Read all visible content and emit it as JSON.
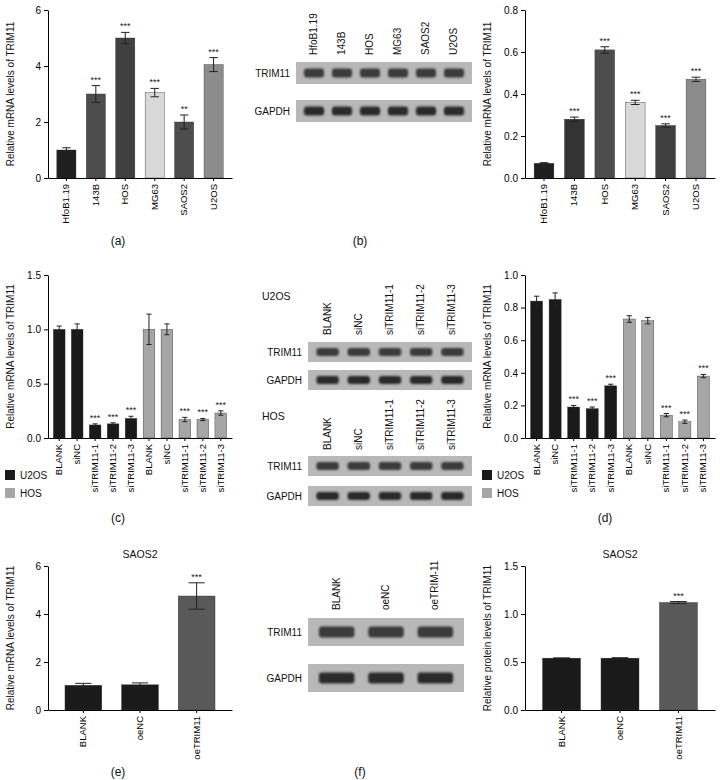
{
  "panels": [
    "(a)",
    "(b)",
    "(c)",
    "(d)",
    "(e)",
    "(f)"
  ],
  "chart_data": [
    {
      "type": "bar",
      "y_label": "Relative mRNA levels of TRIM11",
      "categories": [
        "HfoB1.19",
        "143B",
        "HOS",
        "MG63",
        "SAOS2",
        "U2OS"
      ],
      "values": [
        1.0,
        3.0,
        5.0,
        3.05,
        2.0,
        4.05
      ],
      "errors": [
        0.08,
        0.3,
        0.2,
        0.15,
        0.25,
        0.25
      ],
      "annotations": [
        null,
        "***",
        "***",
        "***",
        "**",
        "***"
      ],
      "colors": [
        "#1f1f1f",
        "#4d4d4d",
        "#404040",
        "#d9d9d9",
        "#4d4d4d",
        "#8c8c8c"
      ],
      "ylim": [
        0,
        6
      ],
      "yticks": [
        0,
        2,
        4,
        6
      ]
    },
    {
      "type": "bar",
      "y_label": "Relative mRNA levels of TRIM11",
      "categories": [
        "HfoB1.19",
        "143B",
        "HOS",
        "MG63",
        "SAOS2",
        "U2OS"
      ],
      "values": [
        0.07,
        0.28,
        0.61,
        0.36,
        0.25,
        0.47
      ],
      "errors": [
        0.003,
        0.01,
        0.015,
        0.01,
        0.008,
        0.01
      ],
      "annotations": [
        null,
        "***",
        "***",
        "***",
        "***",
        "***"
      ],
      "colors": [
        "#1f1f1f",
        "#333333",
        "#4d4d4d",
        "#d9d9d9",
        "#404040",
        "#8c8c8c"
      ],
      "ylim": [
        0,
        0.8
      ],
      "yticks": [
        {
          "value": 0,
          "label": "0.0"
        },
        0.2,
        0.4,
        0.6,
        0.8
      ]
    },
    {
      "type": "bar",
      "y_label": "Relative mRNA levels of TRIM11",
      "categories": [
        "BLANK",
        "siNC",
        "siTRIM11-1",
        "siTRIM11-2",
        "siTRIM11-3"
      ],
      "series": [
        {
          "name": "U2OS",
          "color": "#1a1a1a",
          "values": [
            1.0,
            1.0,
            0.12,
            0.13,
            0.18
          ],
          "errors": [
            0.03,
            0.05,
            0.01,
            0.01,
            0.02
          ],
          "annotations": [
            null,
            null,
            "***",
            "***",
            "***"
          ]
        },
        {
          "name": "HOS",
          "color": "#a6a6a6",
          "values": [
            1.0,
            1.0,
            0.17,
            0.17,
            0.23
          ],
          "errors": [
            0.14,
            0.05,
            0.02,
            0.01,
            0.02
          ],
          "annotations": [
            null,
            null,
            "***",
            "***",
            "***"
          ]
        }
      ],
      "legend": "bottom",
      "ylim": [
        0,
        1.5
      ],
      "yticks": [
        {
          "value": 0,
          "label": "0.0"
        },
        0.5,
        {
          "value": 1,
          "label": "1.0"
        },
        1.5
      ]
    },
    {
      "type": "bar",
      "y_label": "Relative mRNA levels of TRIM11",
      "categories": [
        "BLANK",
        "siNC",
        "siTRIM11-1",
        "siTRIM11-2",
        "siTRIM11-3"
      ],
      "series": [
        {
          "name": "U2OS",
          "color": "#1a1a1a",
          "values": [
            0.84,
            0.85,
            0.19,
            0.18,
            0.32
          ],
          "errors": [
            0.03,
            0.04,
            0.01,
            0.01,
            0.01
          ],
          "annotations": [
            null,
            null,
            "***",
            "***",
            "***"
          ]
        },
        {
          "name": "HOS",
          "color": "#a6a6a6",
          "values": [
            0.73,
            0.72,
            0.14,
            0.1,
            0.38
          ],
          "errors": [
            0.02,
            0.02,
            0.01,
            0.01,
            0.01
          ],
          "annotations": [
            null,
            null,
            "***",
            "***",
            "***"
          ]
        }
      ],
      "legend": "bottom",
      "ylim": [
        0,
        1.0
      ],
      "yticks": [
        {
          "value": 0,
          "label": "0.0"
        },
        0.2,
        0.4,
        0.6,
        0.8,
        {
          "value": 1,
          "label": "1.0"
        }
      ]
    },
    {
      "type": "bar",
      "title": "SAOS2",
      "y_label": "Relative mRNA levels of TRIM11",
      "categories": [
        "BLANK",
        "oeNC",
        "oeTRIM11"
      ],
      "values": [
        1.03,
        1.05,
        4.75
      ],
      "errors": [
        0.08,
        0.08,
        0.55
      ],
      "annotations": [
        null,
        null,
        "***"
      ],
      "colors": [
        "#1a1a1a",
        "#1a1a1a",
        "#595959"
      ],
      "ylim": [
        0,
        6
      ],
      "yticks": [
        0,
        2,
        4,
        6
      ]
    },
    {
      "type": "bar",
      "title": "SAOS2",
      "y_label": "Relative protein levels of TRIM11",
      "categories": [
        "BLANK",
        "oeNC",
        "oeTRIM11"
      ],
      "values": [
        0.54,
        0.54,
        1.12
      ],
      "errors": [
        0.003,
        0.005,
        0.01
      ],
      "annotations": [
        null,
        null,
        "***"
      ],
      "colors": [
        "#1a1a1a",
        "#1a1a1a",
        "#595959"
      ],
      "ylim": [
        0,
        1.5
      ],
      "yticks": [
        {
          "value": 0,
          "label": "0.0"
        },
        0.5,
        {
          "value": 1,
          "label": "1.0"
        },
        1.5
      ]
    }
  ],
  "blots": [
    {
      "lanes": [
        "HfoB1.19",
        "143B",
        "HOS",
        "MG63",
        "SAOS2",
        "U2OS"
      ],
      "rows": [
        "TRIM11",
        "GAPDH"
      ]
    },
    {
      "title": "U2OS",
      "lanes": [
        "BLANK",
        "siNC",
        "siTRIM11-1",
        "siTRIM11-2",
        "siTRIM11-3"
      ],
      "rows": [
        "TRIM11",
        "GAPDH"
      ]
    },
    {
      "title": "HOS",
      "lanes": [
        "BLANK",
        "siNC",
        "siTRIM11-1",
        "siTRIM11-2",
        "siTRIM11-3"
      ],
      "rows": [
        "TRIM11",
        "GAPDH"
      ]
    },
    {
      "lanes": [
        "BLANK",
        "oeNC",
        "oeTRIM-11"
      ],
      "rows": [
        "TRIM11",
        "GAPDH"
      ]
    }
  ]
}
